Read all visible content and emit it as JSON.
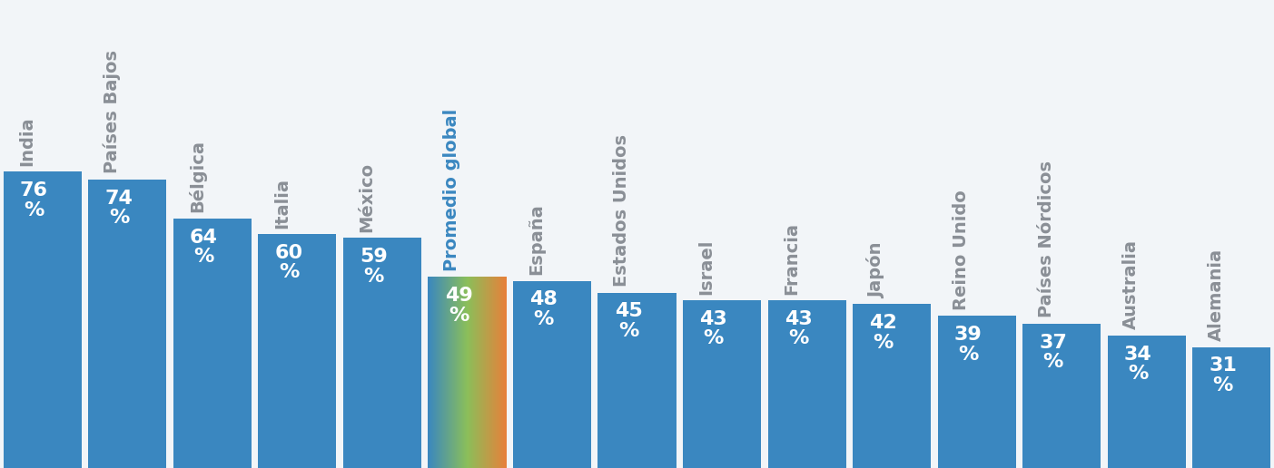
{
  "chart_data": {
    "type": "bar",
    "categories": [
      "India",
      "Países Bajos",
      "Bélgica",
      "Italia",
      "México",
      "Promedio global",
      "España",
      "Estados Unidos",
      "Israel",
      "Francia",
      "Japón",
      "Reino Unido",
      "Países Nórdicos",
      "Australia",
      "Alemania"
    ],
    "values": [
      76,
      74,
      64,
      60,
      59,
      49,
      48,
      45,
      43,
      43,
      42,
      39,
      37,
      34,
      31
    ],
    "value_labels": [
      "76\n%",
      "74\n%",
      "64\n%",
      "60\n%",
      "59\n%",
      "49\n%",
      "48\n%",
      "45\n%",
      "43\n%",
      "43\n%",
      "42\n%",
      "39\n%",
      "37\n%",
      "34\n%",
      "31\n%"
    ],
    "colors": [
      "#3a87c0",
      "#3a87c0",
      "#3a87c0",
      "#3a87c0",
      "#3a87c0",
      "#e8803a",
      "#3a87c0",
      "#3a87c0",
      "#3a87c0",
      "#3a87c0",
      "#3a87c0",
      "#3a87c0",
      "#3a87c0",
      "#3a87c0",
      "#3a87c0"
    ],
    "ylim": [
      0,
      120
    ],
    "data_labels": true,
    "tick_labels": false
  }
}
